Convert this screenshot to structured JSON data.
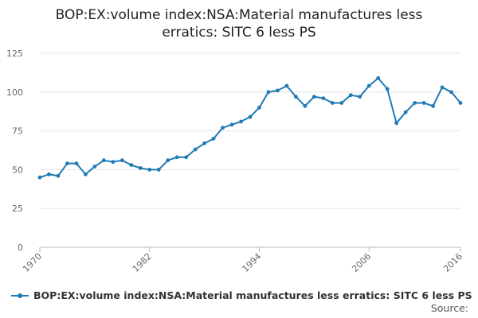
{
  "title_lines": [
    "BOP:EX:volume index:NSA:Material manufactures less",
    "erratics: SITC 6 less PS"
  ],
  "source_label": "Source:",
  "colors": {
    "series": "#1f7ab5",
    "grid": "#e6e6e6",
    "axis": "#bbbbbb"
  },
  "chart_data": {
    "type": "line",
    "title": "BOP:EX:volume index:NSA:Material manufactures less erratics: SITC 6 less PS",
    "xlabel": "",
    "ylabel": "",
    "ylim": [
      0,
      125
    ],
    "xlim": [
      1970,
      2016
    ],
    "y_ticks": [
      0,
      25,
      50,
      75,
      100,
      125
    ],
    "x_ticks": [
      1970,
      1982,
      1994,
      2006,
      2016
    ],
    "grid": true,
    "legend_position": "bottom",
    "series": [
      {
        "name": "BOP:EX:volume index:NSA:Material manufactures less erratics: SITC 6 less PS",
        "x": [
          1970,
          1971,
          1972,
          1973,
          1974,
          1975,
          1976,
          1977,
          1978,
          1979,
          1980,
          1981,
          1982,
          1983,
          1984,
          1985,
          1986,
          1987,
          1988,
          1989,
          1990,
          1991,
          1992,
          1993,
          1994,
          1995,
          1996,
          1997,
          1998,
          1999,
          2000,
          2001,
          2002,
          2003,
          2004,
          2005,
          2006,
          2007,
          2008,
          2009,
          2010,
          2011,
          2012,
          2013,
          2014,
          2015,
          2016
        ],
        "values": [
          45,
          47,
          46,
          54,
          54,
          47,
          52,
          56,
          55,
          56,
          53,
          51,
          50,
          50,
          56,
          58,
          58,
          63,
          67,
          70,
          77,
          79,
          81,
          84,
          90,
          100,
          101,
          104,
          97,
          91,
          97,
          96,
          93,
          93,
          98,
          97,
          104,
          109,
          102,
          80,
          87,
          93,
          93,
          91,
          103,
          100,
          93
        ]
      }
    ]
  }
}
